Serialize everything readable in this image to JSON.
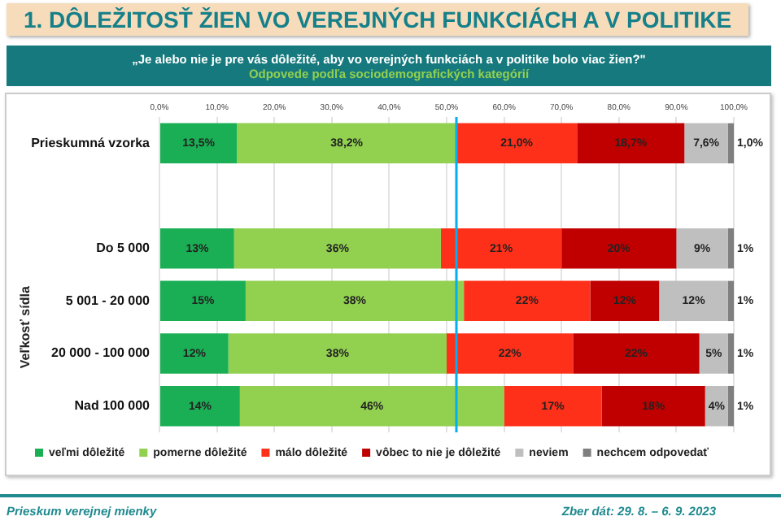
{
  "chart_data": {
    "type": "bar",
    "orientation": "horizontal",
    "stacked": true,
    "title": "1. DÔLEŽITOSŤ ŽIEN VO VEREJNÝCH FUNKCIÁCH A V POLITIKE",
    "subtitle": "„Je alebo nie je pre vás dôležité, aby vo verejných funkciách a v politike bolo viac žien?\"",
    "ylabel": "Veľkosť sídla",
    "categories": [
      "Prieskumná vzorka",
      null,
      "Do 5 000",
      "5 001 - 20 000",
      "20 000 - 100 000",
      "Nad 100 000"
    ],
    "series": [
      {
        "name": "veľmi dôležité",
        "color": "#1aaf54",
        "values": [
          13.5,
          null,
          13,
          15,
          12,
          14
        ],
        "value_labels": [
          "13,5%",
          null,
          "13%",
          "15%",
          "12%",
          "14%"
        ]
      },
      {
        "name": "pomerne dôležité",
        "color": "#92d050",
        "values": [
          38.2,
          null,
          36,
          38,
          38,
          46
        ],
        "value_labels": [
          "38,2%",
          null,
          "36%",
          "38%",
          "38%",
          "46%"
        ]
      },
      {
        "name": "málo dôležité",
        "color": "#ff3019",
        "values": [
          21.0,
          null,
          21,
          22,
          22,
          17
        ],
        "value_labels": [
          "21,0%",
          null,
          "21%",
          "22%",
          "22%",
          "17%"
        ]
      },
      {
        "name": "vôbec to nie je dôležité",
        "color": "#c00000",
        "values": [
          18.7,
          null,
          20,
          12,
          22,
          18
        ],
        "value_labels": [
          "18,7%",
          null,
          "20%",
          "12%",
          "22%",
          "18%"
        ]
      },
      {
        "name": "neviem",
        "color": "#bfbfbf",
        "values": [
          7.6,
          null,
          9,
          12,
          5,
          4
        ],
        "value_labels": [
          "7,6%",
          null,
          "9%",
          "12%",
          "5%",
          "4%"
        ]
      },
      {
        "name": "nechcem odpovedať",
        "color": "#7f7f7f",
        "values": [
          1.0,
          null,
          1,
          1,
          1,
          1
        ],
        "value_labels": [
          "1,0%",
          null,
          "1%",
          "1%",
          "1%",
          "1%"
        ]
      }
    ],
    "xlim": [
      0,
      100
    ],
    "xticks": [
      {
        "value": 0,
        "label": "0,0%"
      },
      {
        "value": 10,
        "label": "10,0%"
      },
      {
        "value": 20,
        "label": "20,0%"
      },
      {
        "value": 30,
        "label": "30,0%"
      },
      {
        "value": 40,
        "label": "40,0%"
      },
      {
        "value": 50,
        "label": "50,0%"
      },
      {
        "value": 60,
        "label": "60,0%"
      },
      {
        "value": 70,
        "label": "70,0%"
      },
      {
        "value": 80,
        "label": "80,0%"
      },
      {
        "value": 90,
        "label": "90,0%"
      },
      {
        "value": 100,
        "label": "100,0%"
      }
    ],
    "ref_lines": [
      {
        "axis": "x",
        "value": 51.7,
        "color": "#00b0f0"
      }
    ],
    "grid": "x",
    "legend": "bottom",
    "annotations": [
      "Odpovede podľa sociodemografických kategórií",
      "Prieskum verejnej mienky",
      "Zber dát: 29. 8. – 6. 9. 2023"
    ]
  }
}
